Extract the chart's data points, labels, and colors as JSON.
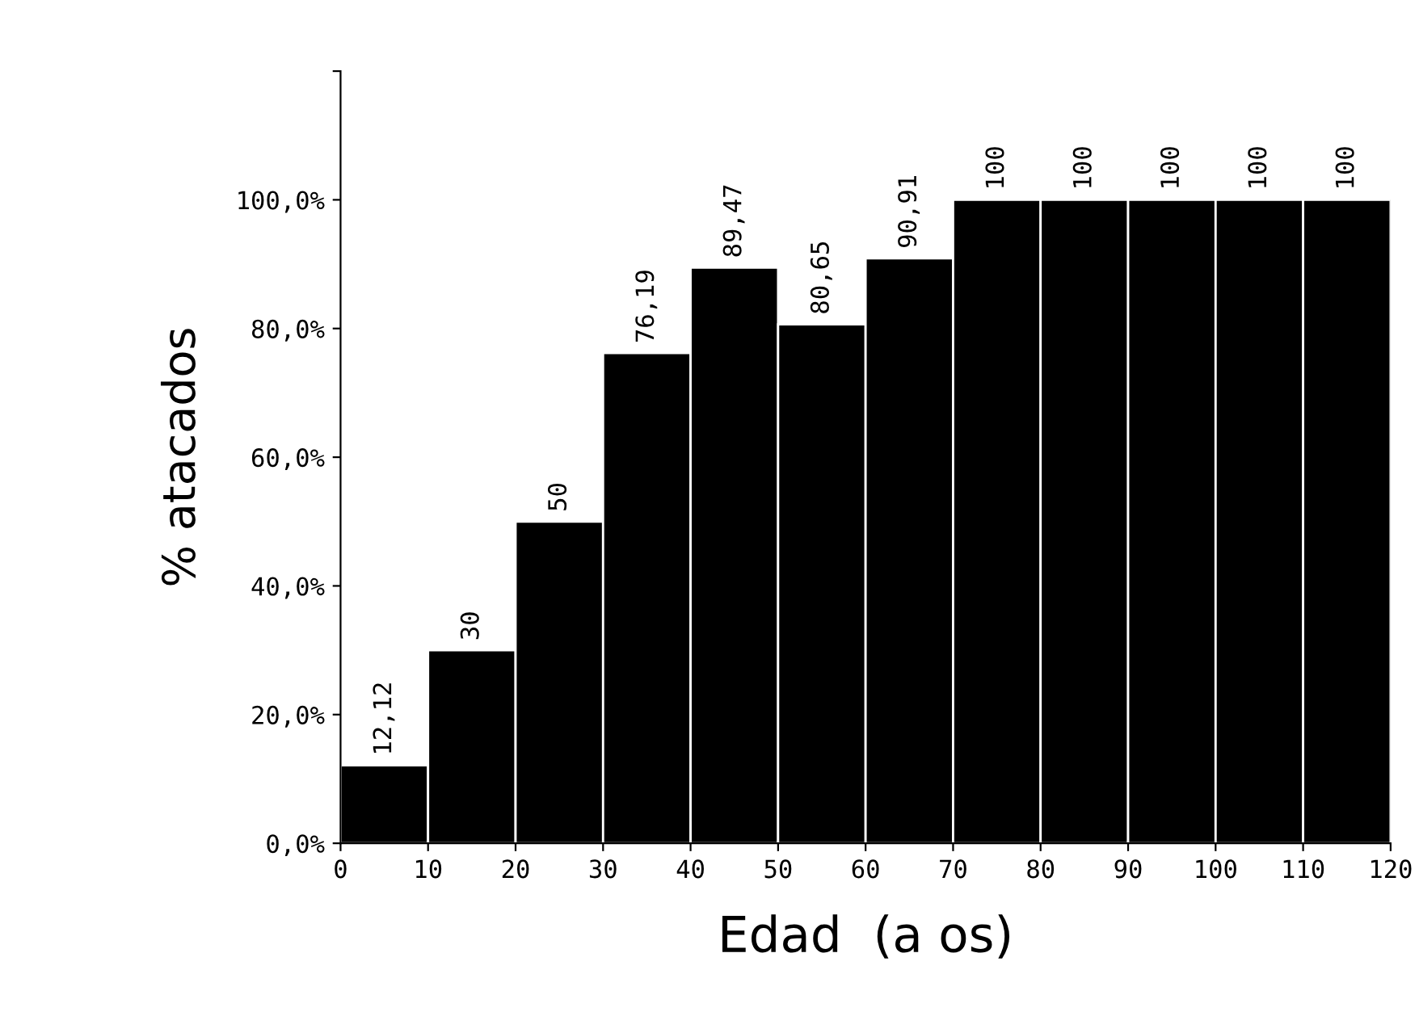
{
  "chart_data": {
    "type": "histogram",
    "bins": [
      0,
      10,
      20,
      30,
      40,
      50,
      60,
      70,
      80,
      90,
      100,
      110,
      120
    ],
    "values": [
      12.12,
      30,
      50,
      76.19,
      89.47,
      80.65,
      90.91,
      100,
      100,
      100,
      100,
      100
    ],
    "value_labels": [
      "12,12",
      "30",
      "50",
      "76,19",
      "89,47",
      "80,65",
      "90,91",
      "100",
      "100",
      "100",
      "100",
      "100"
    ],
    "color": "#000000",
    "xlabel": "Edad  (a os)",
    "ylabel": "% atacados",
    "xlim": [
      0,
      120
    ],
    "xticks": [
      0,
      10,
      20,
      30,
      40,
      50,
      60,
      70,
      80,
      90,
      100,
      110,
      120
    ],
    "ylim": [
      0,
      120
    ],
    "yticks": [
      {
        "value": 0,
        "label": "0,0%"
      },
      {
        "value": 20,
        "label": "20,0%"
      },
      {
        "value": 40,
        "label": "40,0%"
      },
      {
        "value": 60,
        "label": "60,0%"
      },
      {
        "value": 80,
        "label": "80,0%"
      },
      {
        "value": 100,
        "label": "100,0%"
      },
      {
        "value": 120,
        "label": null
      }
    ],
    "grid": false
  }
}
